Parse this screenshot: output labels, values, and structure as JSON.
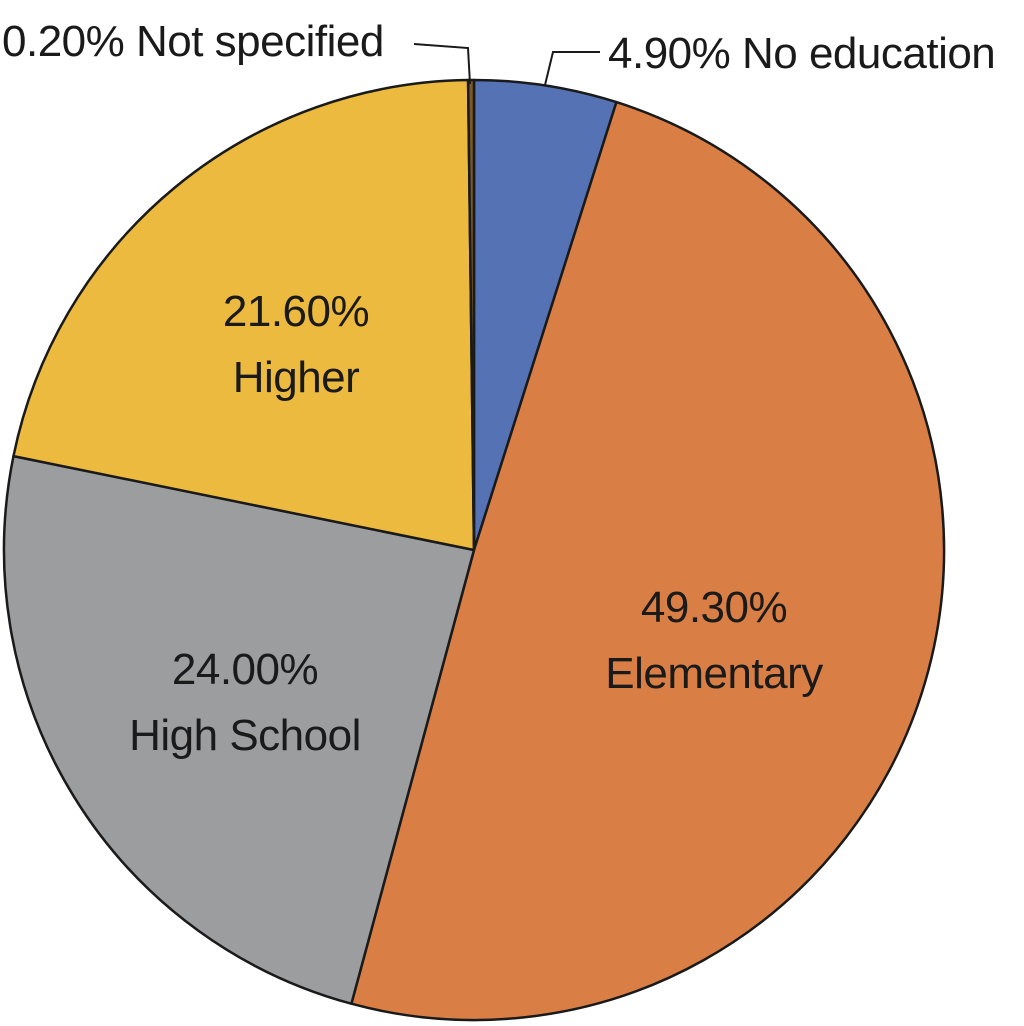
{
  "chart_data": {
    "type": "pie",
    "slices": [
      {
        "label": "No education",
        "value": 4.9,
        "value_text": "4.90%",
        "color": "#5472b4"
      },
      {
        "label": "Elementary",
        "value": 49.3,
        "value_text": "49.30%",
        "color": "#d97f45"
      },
      {
        "label": "High School",
        "value": 24.0,
        "value_text": "24.00%",
        "color": "#9c9d9f"
      },
      {
        "label": "Higher",
        "value": 21.6,
        "value_text": "21.60%",
        "color": "#ebba3e"
      },
      {
        "label": "Not specified",
        "value": 0.2,
        "value_text": "0.20%",
        "color": "#7a5a2a"
      }
    ],
    "start_angle_deg": 0,
    "direction": "clockwise",
    "label_placement": {
      "No education": "outside-leader",
      "Elementary": "inside",
      "High School": "inside",
      "Higher": "inside",
      "Not specified": "outside-leader"
    }
  },
  "labels": {
    "no_education": "4.90% No education",
    "elementary_pct": "49.30%",
    "elementary_name": "Elementary",
    "high_school_pct": "24.00%",
    "high_school_name": "High School",
    "higher_pct": "21.60%",
    "higher_name": "Higher",
    "not_specified": "0.20% Not specified"
  }
}
